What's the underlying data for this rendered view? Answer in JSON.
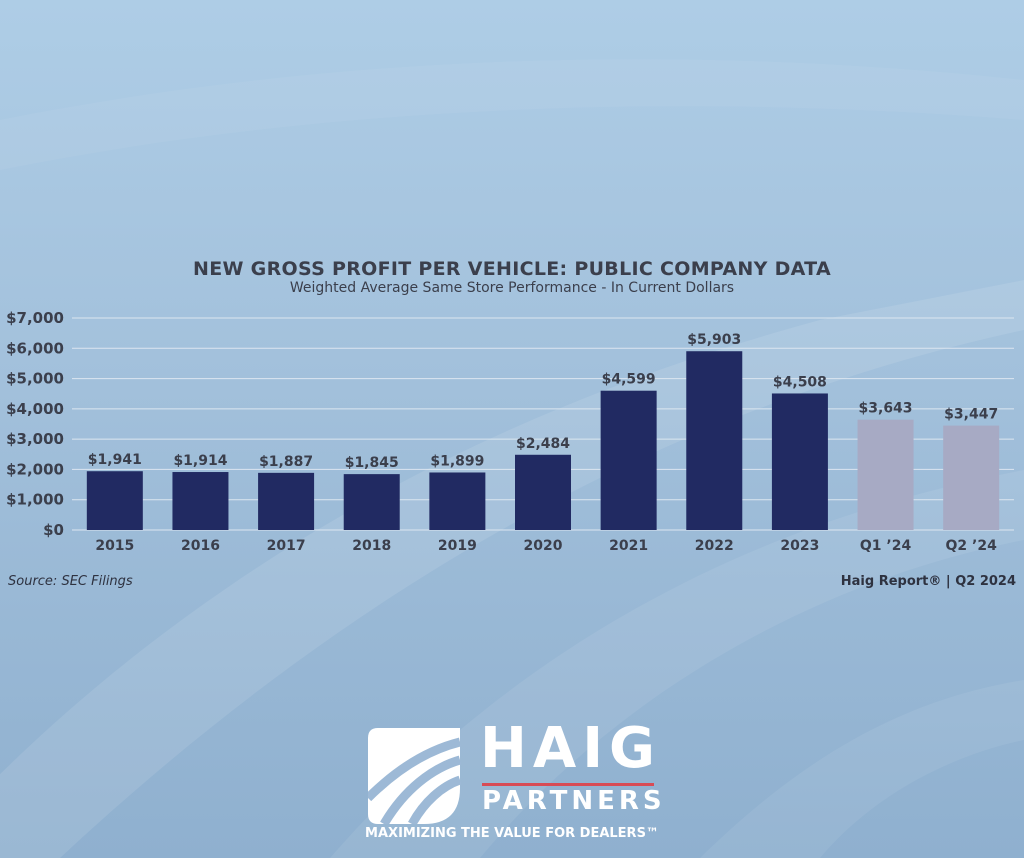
{
  "chart_data": {
    "type": "bar",
    "title": "NEW GROSS PROFIT PER VEHICLE: PUBLIC COMPANY DATA",
    "subtitle": "Weighted Average Same Store Performance - In Current Dollars",
    "categories": [
      "2015",
      "2016",
      "2017",
      "2018",
      "2019",
      "2020",
      "2021",
      "2022",
      "2023",
      "Q1 ’24",
      "Q2 ’24"
    ],
    "values": [
      1941,
      1914,
      1887,
      1845,
      1899,
      2484,
      4599,
      5903,
      4508,
      3643,
      3447
    ],
    "value_labels": [
      "$1,941",
      "$1,914",
      "$1,887",
      "$1,845",
      "$1,899",
      "$2,484",
      "$4,599",
      "$5,903",
      "$4,508",
      "$3,643",
      "$3,447"
    ],
    "ylim": [
      0,
      7000
    ],
    "yticks": [
      0,
      1000,
      2000,
      3000,
      4000,
      5000,
      6000,
      7000
    ],
    "ytick_labels": [
      "$0",
      "$1,000",
      "$2,000",
      "$3,000",
      "$4,000",
      "$5,000",
      "$6,000",
      "$7,000"
    ],
    "xlabel": "",
    "ylabel": "",
    "grid": true,
    "colors": {
      "annual": "#212a62",
      "quarterly": "#a7aac4",
      "grid": "#dce6f0",
      "text": "#3b3f4c"
    },
    "highlight_from_index": 9
  },
  "footer": {
    "source": "Source: SEC Filings",
    "report": "Haig Report® | Q2 2024"
  },
  "logo": {
    "name_top": "HAIG",
    "name_bottom": "PARTNERS",
    "tagline": "MAXIMIZING THE VALUE FOR DEALERS™",
    "accent_color": "#d84b55"
  }
}
